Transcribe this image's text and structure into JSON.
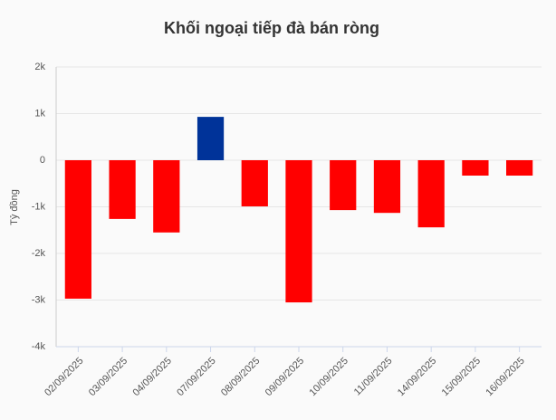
{
  "chart_data": {
    "type": "bar",
    "title": "Khối ngoại tiếp đà bán ròng",
    "y_label": "Tỷ đồng",
    "categories": [
      "02/09/2025",
      "03/09/2025",
      "04/09/2025",
      "07/09/2025",
      "08/09/2025",
      "09/09/2025",
      "10/09/2025",
      "11/09/2025",
      "14/09/2025",
      "15/09/2025",
      "16/09/2025"
    ],
    "values": [
      -2970,
      -1260,
      -1550,
      930,
      -990,
      -3050,
      -1070,
      -1130,
      -1440,
      -330,
      -330
    ],
    "positive_color": "#003399",
    "negative_color": "#ff0000",
    "ylim": [
      -4000,
      2000
    ],
    "yticks": [
      {
        "value": -4000,
        "label": "-4k"
      },
      {
        "value": -3000,
        "label": "-3k"
      },
      {
        "value": -2000,
        "label": "-2k"
      },
      {
        "value": -1000,
        "label": "-1k"
      },
      0,
      {
        "value": 1000,
        "label": "1k"
      },
      {
        "value": 2000,
        "label": "2k"
      }
    ],
    "grid": true
  }
}
